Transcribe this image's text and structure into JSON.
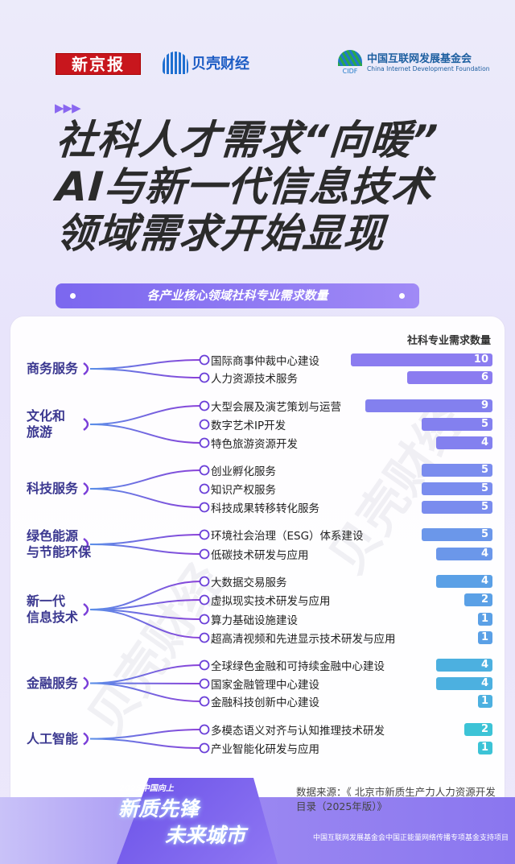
{
  "logos": {
    "xjb": "新京报",
    "beike": "贝壳财经",
    "cidf_cn": "中国互联网发展基金会",
    "cidf_abbr": "CIDF",
    "cidf_en": "China Internet Development Foundation"
  },
  "title_lines": [
    "社科人才需求“向暖”",
    "AI与新一代信息技术",
    "领域需求开始显现"
  ],
  "subtitle": "各产业核心领域社科专业需求数量",
  "watermark": "贝壳财经",
  "colors": {
    "accent": "#7b67ef",
    "bar_start": "#8b7cf0",
    "bar_mid": "#5b9be8",
    "bar_end": "#3cc3d6",
    "category_text": "#3b3890"
  },
  "chart_data": {
    "type": "bar",
    "orientation": "horizontal",
    "value_label": "社科专业需求数量",
    "xlim": [
      0,
      10
    ],
    "groups": [
      {
        "name": "商务服务",
        "items": [
          {
            "label": "国际商事仲裁中心建设",
            "value": 10
          },
          {
            "label": "人力资源技术服务",
            "value": 6
          }
        ]
      },
      {
        "name": "文化和\n旅游",
        "items": [
          {
            "label": "大型会展及演艺策划与运营",
            "value": 9
          },
          {
            "label": "数字艺术IP开发",
            "value": 5
          },
          {
            "label": "特色旅游资源开发",
            "value": 4
          }
        ]
      },
      {
        "name": "科技服务",
        "items": [
          {
            "label": "创业孵化服务",
            "value": 5
          },
          {
            "label": "知识产权服务",
            "value": 5
          },
          {
            "label": "科技成果转移转化服务",
            "value": 5
          }
        ]
      },
      {
        "name": "绿色能源\n与节能环保",
        "items": [
          {
            "label": "环境社会治理（ESG）体系建设",
            "value": 5
          },
          {
            "label": "低碳技术研发与应用",
            "value": 4
          }
        ]
      },
      {
        "name": "新一代\n信息技术",
        "items": [
          {
            "label": "大数据交易服务",
            "value": 4
          },
          {
            "label": "虚拟现实技术研发与应用",
            "value": 2
          },
          {
            "label": "算力基础设施建设",
            "value": 1
          },
          {
            "label": "超高清视频和先进显示技术研发与应用",
            "value": 1
          }
        ]
      },
      {
        "name": "金融服务",
        "items": [
          {
            "label": "全球绿色金融和可持续金融中心建设",
            "value": 4
          },
          {
            "label": "国家金融管理中心建设",
            "value": 4
          },
          {
            "label": "金融科技创新中心建设",
            "value": 1
          }
        ]
      },
      {
        "name": "人工智能",
        "items": [
          {
            "label": "多模态语义对齐与认知推理技术研发",
            "value": 2
          },
          {
            "label": "产业智能化研发与应用",
            "value": 1
          }
        ]
      }
    ]
  },
  "footer": {
    "badge_small": "2025中国向上",
    "badge_line1": "新质先锋",
    "badge_line2": "未来城市",
    "source": "数据来源：《 北京市新质生产力人力资源开发目录（2025年版）》",
    "support": "中国互联网发展基金会中国正能量网络传播专项基金支持项目"
  }
}
